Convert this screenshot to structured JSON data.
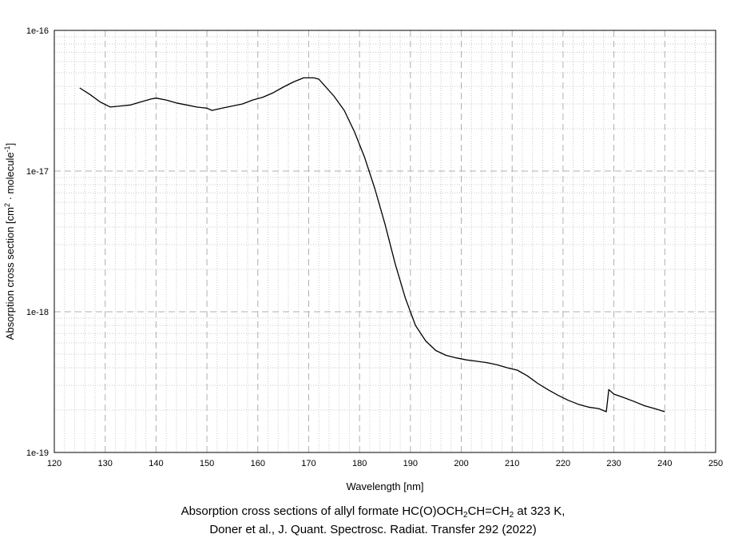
{
  "chart_data": {
    "type": "line",
    "xlabel": "Wavelength [nm]",
    "ylabel": {
      "prefix": "Absorption cross section [cm",
      "sup1": "2",
      "middle": " · molecule",
      "sup2": "-1",
      "suffix": "]"
    },
    "xlim": [
      120,
      250
    ],
    "ylim": [
      1e-19,
      1e-16
    ],
    "yscale": "log",
    "grid": true,
    "x_ticks": [
      "120",
      "130",
      "140",
      "150",
      "160",
      "170",
      "180",
      "190",
      "200",
      "210",
      "220",
      "230",
      "240",
      "250"
    ],
    "y_ticks": [
      "1e-19",
      "1e-18",
      "1e-17",
      "1e-16"
    ],
    "legend": "none",
    "series": [
      {
        "color": "#000000",
        "x": [
          125,
          127,
          129,
          131,
          133,
          135,
          137,
          139,
          140,
          142,
          144,
          146,
          148,
          150,
          151,
          153,
          155,
          157,
          159,
          161,
          163,
          165,
          167,
          169,
          171,
          172,
          173,
          175,
          177,
          179,
          181,
          183,
          185,
          187,
          189,
          191,
          193,
          195,
          197,
          199,
          201,
          203,
          205,
          207,
          209,
          211,
          213,
          215,
          217,
          219,
          221,
          223,
          225,
          227,
          228.5,
          229,
          230,
          232,
          234,
          236,
          238,
          240
        ],
        "y": [
          3.9e-17,
          3.5e-17,
          3.1e-17,
          2.85e-17,
          2.9e-17,
          2.95e-17,
          3.1e-17,
          3.25e-17,
          3.3e-17,
          3.2e-17,
          3.05e-17,
          2.95e-17,
          2.85e-17,
          2.8e-17,
          2.7e-17,
          2.8e-17,
          2.9e-17,
          3e-17,
          3.2e-17,
          3.35e-17,
          3.6e-17,
          3.95e-17,
          4.3e-17,
          4.6e-17,
          4.6e-17,
          4.5e-17,
          4.1e-17,
          3.4e-17,
          2.7e-17,
          1.9e-17,
          1.25e-17,
          7.5e-18,
          4.2e-18,
          2.2e-18,
          1.25e-18,
          8e-19,
          6.2e-19,
          5.3e-19,
          4.9e-19,
          4.7e-19,
          4.55e-19,
          4.45e-19,
          4.35e-19,
          4.2e-19,
          4e-19,
          3.85e-19,
          3.5e-19,
          3.1e-19,
          2.8e-19,
          2.55e-19,
          2.35e-19,
          2.2e-19,
          2.1e-19,
          2.05e-19,
          1.95e-19,
          2.8e-19,
          2.6e-19,
          2.45e-19,
          2.3e-19,
          2.15e-19,
          2.05e-19,
          1.95e-19
        ]
      }
    ]
  },
  "caption": {
    "line1_prefix": "Absorption cross sections of allyl formate HC(O)OCH",
    "sub1": "2",
    "line1_mid": "CH=CH",
    "sub2": "2",
    "line1_suffix": " at 323 K,",
    "line2": "Doner et al., J. Quant. Spectrosc. Radiat. Transfer 292 (2022)"
  }
}
